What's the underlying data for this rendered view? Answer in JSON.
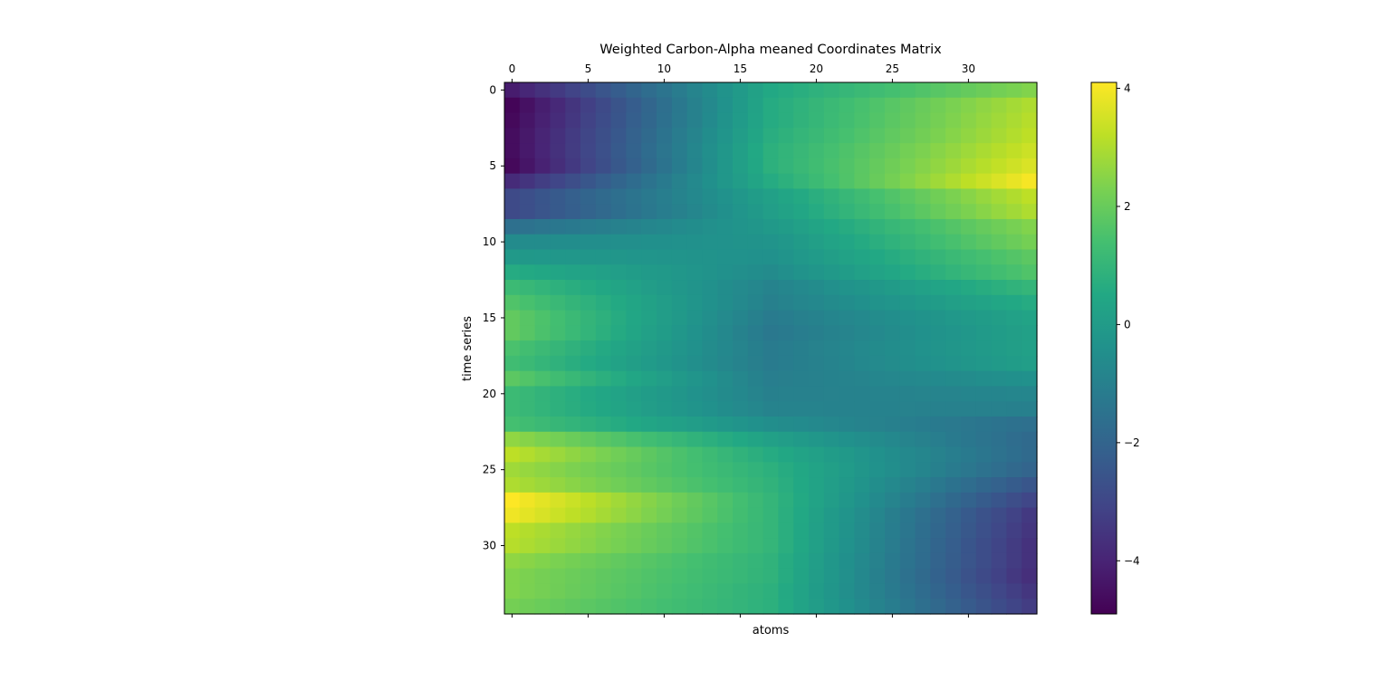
{
  "chart_data": {
    "type": "heatmap",
    "title": "Weighted Carbon-Alpha meaned Coordinates Matrix",
    "xlabel": "atoms",
    "ylabel": "time series",
    "n_cols": 35,
    "n_rows": 35,
    "x_ticks": [
      0,
      5,
      10,
      15,
      20,
      25,
      30
    ],
    "y_ticks": [
      0,
      5,
      10,
      15,
      20,
      25,
      30
    ],
    "colormap": "viridis",
    "colorbar": {
      "vmin": -4.9,
      "vmax": 4.1,
      "ticks": [
        4,
        2,
        0,
        -2,
        -4
      ],
      "tick_labels": [
        "4",
        "2",
        "0",
        "−2",
        "−4"
      ]
    },
    "grid": false,
    "row_profiles": {
      "note_cols": [
        0,
        17,
        34
      ],
      "rows": [
        [
          -4.2,
          0.5,
          2.4
        ],
        [
          -4.8,
          0.6,
          3.0
        ],
        [
          -4.7,
          0.6,
          3.1
        ],
        [
          -4.6,
          0.7,
          3.2
        ],
        [
          -4.6,
          0.8,
          3.4
        ],
        [
          -4.7,
          0.8,
          3.6
        ],
        [
          -3.8,
          0.6,
          4.0
        ],
        [
          -2.9,
          0.2,
          3.2
        ],
        [
          -2.9,
          0.1,
          3.0
        ],
        [
          -1.6,
          -0.1,
          2.4
        ],
        [
          -0.6,
          -0.3,
          2.2
        ],
        [
          -0.1,
          -0.4,
          1.8
        ],
        [
          0.6,
          -0.6,
          1.6
        ],
        [
          1.2,
          -0.9,
          1.0
        ],
        [
          1.6,
          -1.0,
          0.6
        ],
        [
          1.9,
          -1.2,
          0.3
        ],
        [
          1.9,
          -1.3,
          0.2
        ],
        [
          1.5,
          -1.2,
          0.2
        ],
        [
          1.3,
          -1.2,
          0.1
        ],
        [
          1.8,
          -1.1,
          -0.4
        ],
        [
          1.2,
          -1.0,
          -0.8
        ],
        [
          1.2,
          -0.9,
          -1.0
        ],
        [
          1.4,
          -0.5,
          -1.6
        ],
        [
          2.6,
          0.2,
          -1.8
        ],
        [
          3.2,
          0.6,
          -1.8
        ],
        [
          2.8,
          0.8,
          -2.0
        ],
        [
          3.0,
          0.9,
          -2.5
        ],
        [
          4.1,
          1.0,
          -3.0
        ],
        [
          3.9,
          1.0,
          -3.4
        ],
        [
          3.2,
          1.0,
          -3.5
        ],
        [
          3.1,
          1.0,
          -3.6
        ],
        [
          2.6,
          0.9,
          -3.6
        ],
        [
          2.4,
          0.9,
          -3.7
        ],
        [
          2.4,
          0.8,
          -3.5
        ],
        [
          2.2,
          0.8,
          -3.3
        ]
      ]
    }
  }
}
